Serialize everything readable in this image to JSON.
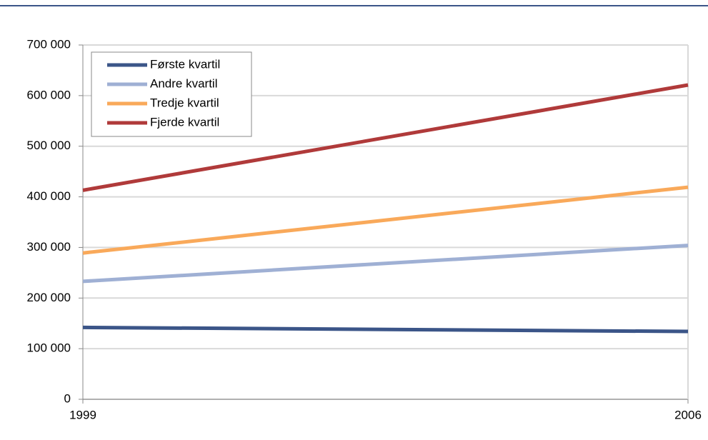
{
  "chart_data": {
    "type": "line",
    "x": [
      1999,
      2006
    ],
    "series": [
      {
        "name": "Første kvartil",
        "color": "#3b5588",
        "values": [
          142000,
          134000
        ]
      },
      {
        "name": "Andre kvartil",
        "color": "#9fb0d4",
        "values": [
          233000,
          304000
        ]
      },
      {
        "name": "Tredje kvartil",
        "color": "#f9a95a",
        "values": [
          289000,
          419000
        ]
      },
      {
        "name": "Fjerde kvartil",
        "color": "#b03a3a",
        "values": [
          413000,
          621000
        ]
      }
    ],
    "xlim": [
      1999,
      2006
    ],
    "xticks": [
      1999,
      2006
    ],
    "ylim": [
      0,
      700000
    ],
    "yticks": [
      0,
      {
        "value": 100000,
        "label": "100 000"
      },
      {
        "value": 200000,
        "label": "200 000"
      },
      {
        "value": 300000,
        "label": "300 000"
      },
      {
        "value": 400000,
        "label": "400 000"
      },
      {
        "value": 500000,
        "label": "500 000"
      },
      {
        "value": 600000,
        "label": "600 000"
      },
      {
        "value": 700000,
        "label": "700 000"
      }
    ],
    "grid": true,
    "legend": "top-left"
  }
}
